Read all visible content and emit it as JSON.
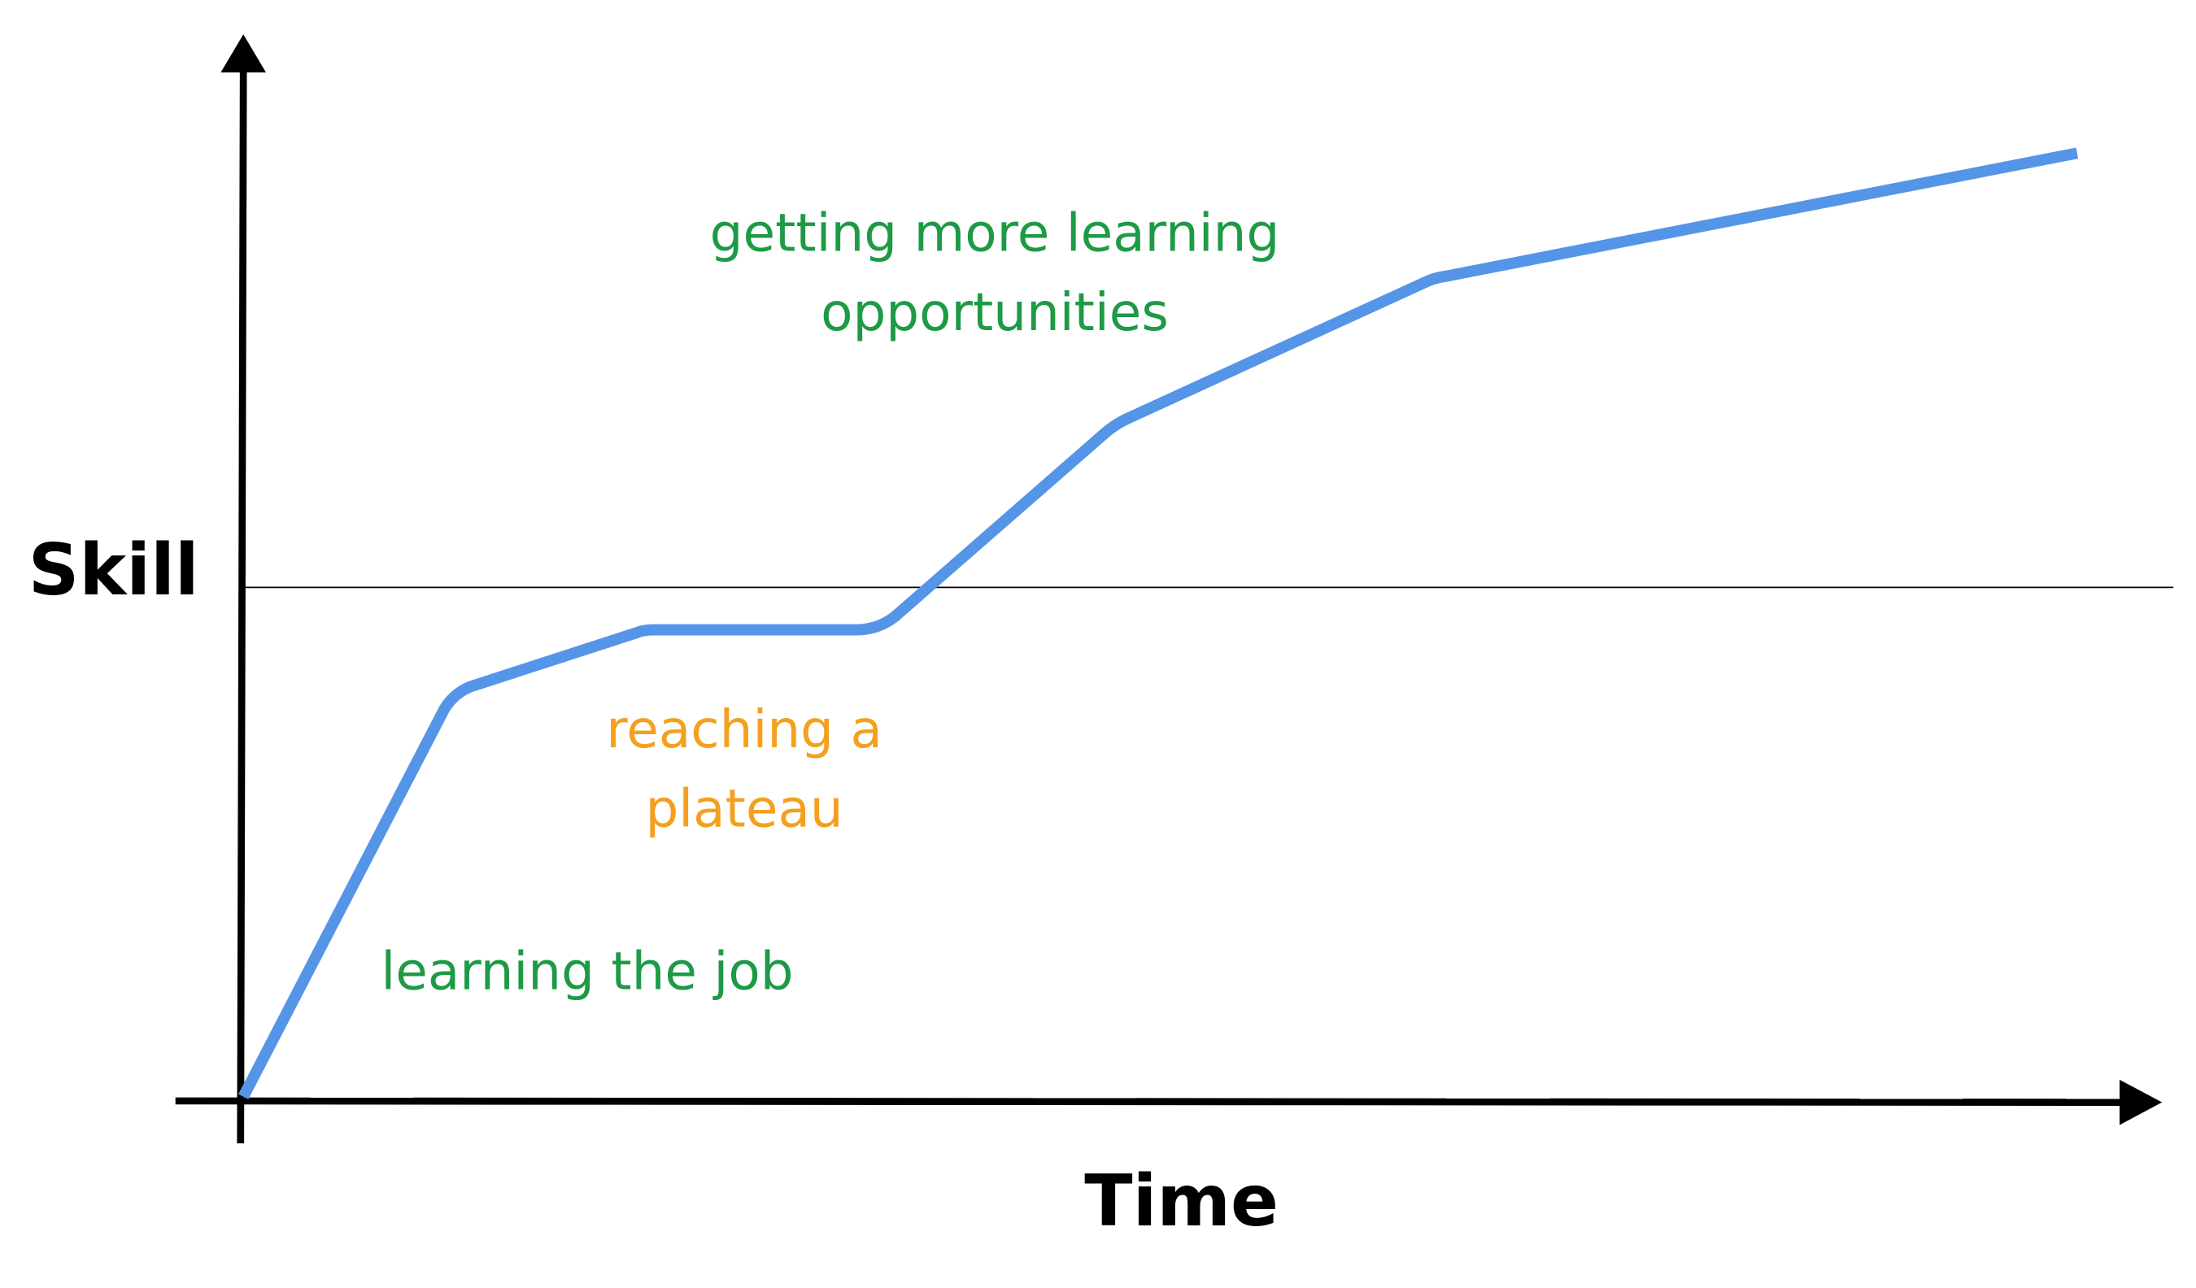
{
  "axes": {
    "y_label": "Skill",
    "x_label": "Time"
  },
  "annotations": [
    {
      "lines": [
        "getting more learning",
        "opportunities"
      ]
    },
    {
      "lines": [
        "reaching a",
        "plateau"
      ]
    },
    {
      "lines": [
        "learning the job"
      ]
    }
  ]
}
